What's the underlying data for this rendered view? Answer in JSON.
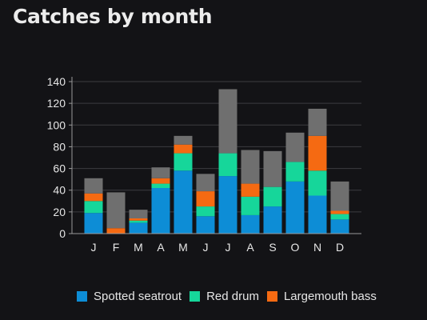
{
  "chart_data": {
    "type": "bar",
    "stacked": true,
    "title": "Catches by month",
    "xlabel": "",
    "ylabel": "",
    "categories": [
      "J",
      "F",
      "M",
      "A",
      "M",
      "J",
      "J",
      "A",
      "S",
      "O",
      "N",
      "D"
    ],
    "ylim": [
      0,
      140
    ],
    "yticks": [
      0,
      20,
      40,
      60,
      80,
      100,
      120,
      140
    ],
    "grid": true,
    "legend_position": "bottom",
    "series": [
      {
        "name": "Spotted seatrout",
        "color": "#0d8dd6",
        "values": [
          19,
          0,
          10,
          42,
          58,
          16,
          53,
          17,
          25,
          48,
          35,
          13
        ]
      },
      {
        "name": "Red drum",
        "color": "#16d69a",
        "values": [
          11,
          0,
          2,
          4,
          16,
          9,
          21,
          17,
          18,
          18,
          23,
          5
        ]
      },
      {
        "name": "Largemouth bass",
        "color": "#f56a12",
        "values": [
          7,
          5,
          2,
          5,
          8,
          14,
          0,
          12,
          0,
          0,
          32,
          3
        ]
      },
      {
        "color": "#6f6f6f",
        "values": [
          14,
          33,
          8,
          10,
          8,
          16,
          59,
          31,
          33,
          27,
          25,
          27
        ]
      }
    ]
  }
}
